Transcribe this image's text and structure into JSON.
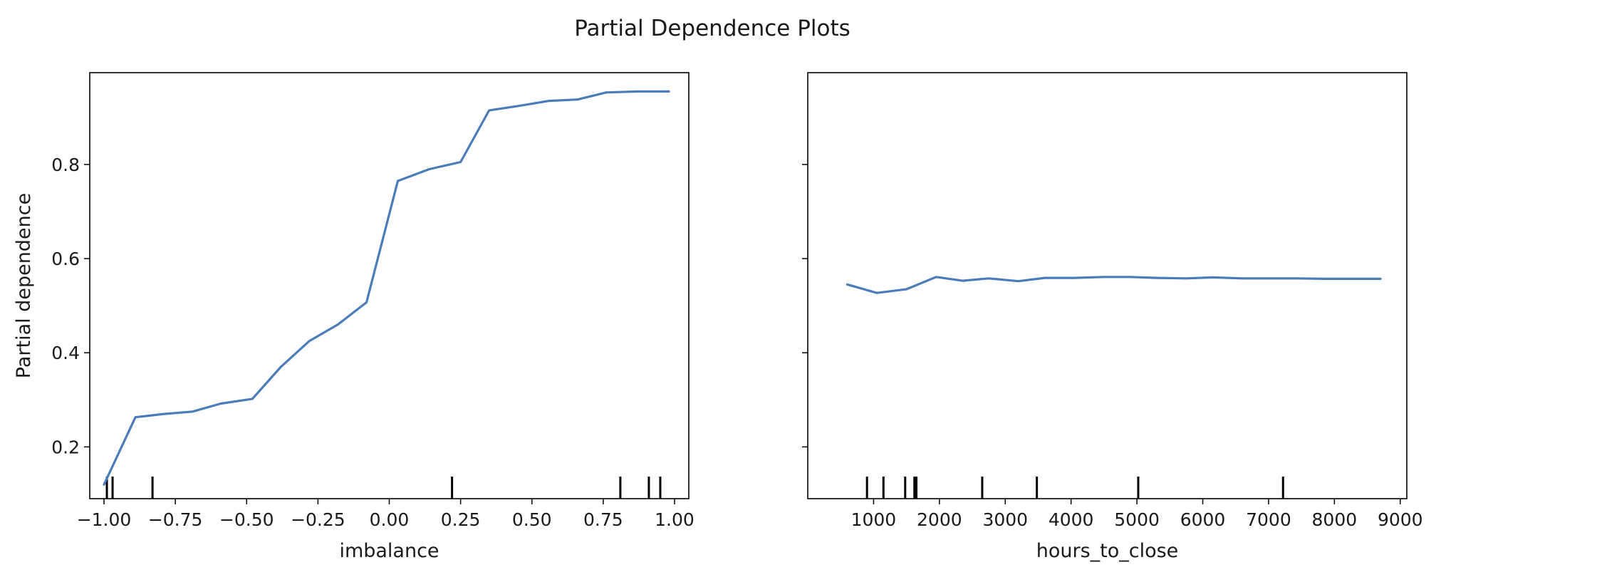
{
  "figure": {
    "title": "Partial Dependence Plots"
  },
  "chart_data": [
    {
      "type": "line",
      "xlabel": "imbalance",
      "ylabel": "Partial dependence",
      "xlim": [
        -1.05,
        1.05
      ],
      "ylim": [
        0.09,
        0.995
      ],
      "x_ticks": [
        -1.0,
        -0.75,
        -0.5,
        -0.25,
        0.0,
        0.25,
        0.5,
        0.75,
        1.0
      ],
      "x_tick_labels": [
        "−1.00",
        "−0.75",
        "−0.50",
        "−0.25",
        "0.00",
        "0.25",
        "0.50",
        "0.75",
        "1.00"
      ],
      "y_ticks": [
        0.2,
        0.4,
        0.6,
        0.8
      ],
      "y_tick_labels": [
        "0.2",
        "0.4",
        "0.6",
        "0.8"
      ],
      "grid": false,
      "color": "#4a7cba",
      "series": [
        {
          "x": [
            -1.0,
            -0.89,
            -0.79,
            -0.69,
            -0.59,
            -0.48,
            -0.38,
            -0.28,
            -0.18,
            -0.08,
            0.03,
            0.14,
            0.25,
            0.35,
            0.45,
            0.56,
            0.66,
            0.76,
            0.87,
            0.98
          ],
          "y": [
            0.12,
            0.263,
            0.27,
            0.275,
            0.292,
            0.302,
            0.37,
            0.425,
            0.46,
            0.507,
            0.765,
            0.79,
            0.805,
            0.915,
            0.924,
            0.935,
            0.938,
            0.953,
            0.955,
            0.955
          ]
        }
      ],
      "rug": [
        -0.99,
        -0.97,
        -0.83,
        0.22,
        0.81,
        0.91,
        0.95
      ]
    },
    {
      "type": "line",
      "xlabel": "hours_to_close",
      "ylabel": "",
      "xlim": [
        0,
        9100
      ],
      "ylim": [
        0.09,
        0.995
      ],
      "x_ticks": [
        1000,
        2000,
        3000,
        4000,
        5000,
        6000,
        7000,
        8000,
        9000
      ],
      "x_tick_labels": [
        "1000",
        "2000",
        "3000",
        "4000",
        "5000",
        "6000",
        "7000",
        "8000",
        "9000"
      ],
      "y_ticks": [
        0.2,
        0.4,
        0.6,
        0.8
      ],
      "y_tick_labels": [],
      "grid": false,
      "color": "#4a7cba",
      "series": [
        {
          "x": [
            600,
            1050,
            1500,
            1950,
            2350,
            2750,
            3200,
            3600,
            4050,
            4500,
            4900,
            5300,
            5750,
            6150,
            6600,
            7000,
            7450,
            7850,
            8300,
            8700
          ],
          "y": [
            0.545,
            0.527,
            0.535,
            0.561,
            0.553,
            0.558,
            0.552,
            0.559,
            0.559,
            0.561,
            0.561,
            0.559,
            0.558,
            0.56,
            0.558,
            0.558,
            0.558,
            0.557,
            0.557,
            0.557
          ]
        }
      ],
      "rug": [
        900,
        1150,
        1480,
        1620,
        1650,
        2650,
        3480,
        5020,
        7220
      ]
    }
  ]
}
